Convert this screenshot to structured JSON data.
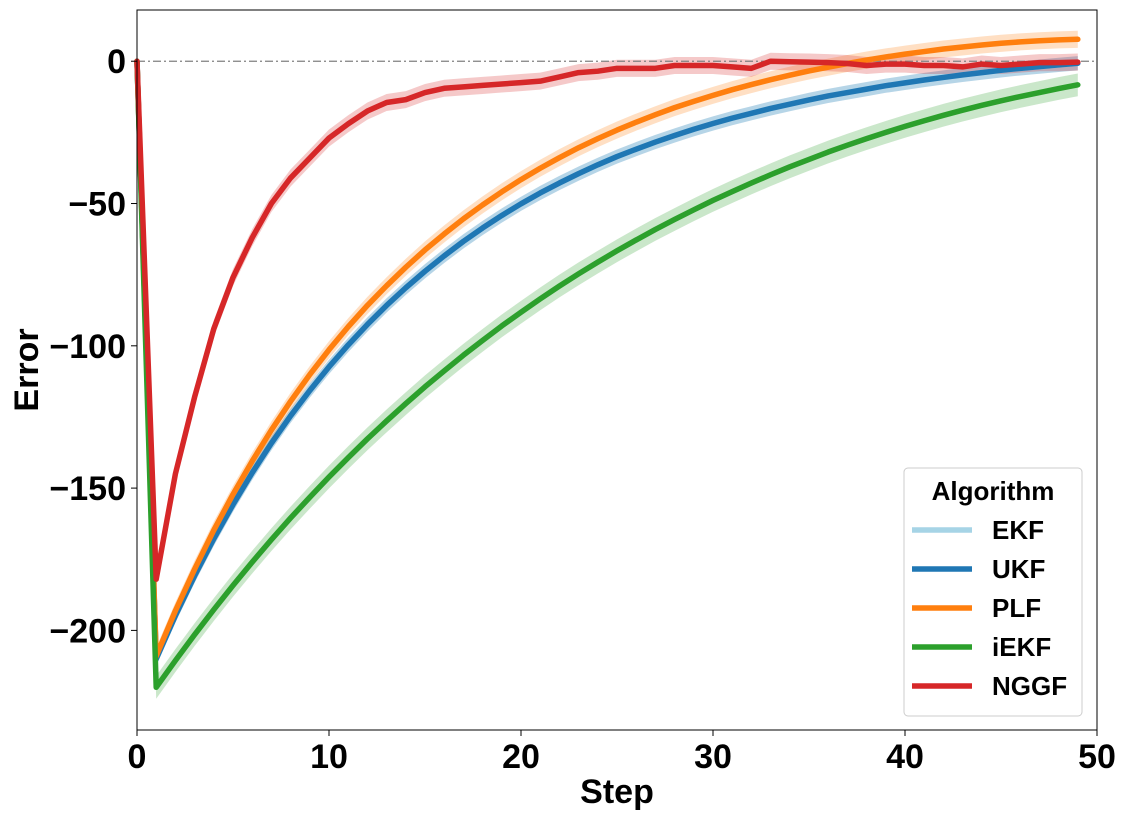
{
  "chart_data": {
    "type": "line",
    "xlabel": "Step",
    "ylabel": "Error",
    "xlim": [
      0,
      50
    ],
    "ylim": [
      -235,
      18
    ],
    "xticks": [
      0,
      10,
      20,
      30,
      40,
      50
    ],
    "yticks": [
      0,
      -50,
      -100,
      -150,
      -200
    ],
    "xtick_labels": [
      "0",
      "10",
      "20",
      "30",
      "40",
      "50"
    ],
    "ytick_labels": [
      "0",
      "−50",
      "−100",
      "−150",
      "−200"
    ],
    "grid": false,
    "reference_line": {
      "y": 0,
      "style": "dash-dot",
      "color": "#808080"
    },
    "legend": {
      "title": "Algorithm",
      "placement": "lower-right"
    },
    "x": [
      0,
      1,
      2,
      3,
      4,
      5,
      6,
      7,
      8,
      9,
      10,
      11,
      12,
      13,
      14,
      15,
      16,
      17,
      18,
      19,
      20,
      21,
      22,
      23,
      24,
      25,
      26,
      27,
      28,
      29,
      30,
      31,
      32,
      33,
      34,
      35,
      36,
      37,
      38,
      39,
      40,
      41,
      42,
      43,
      44,
      45,
      46,
      47,
      48,
      49
    ],
    "series": [
      {
        "name": "EKF",
        "color": "#a6d4e6",
        "band": 2.5,
        "values": [
          0,
          -210,
          -194.8,
          -180.8,
          -167.8,
          -155.8,
          -144.6,
          -134.2,
          -124.6,
          -115.7,
          -107.4,
          -99.7,
          -92.5,
          -85.8,
          -79.6,
          -73.8,
          -68.4,
          -63.3,
          -58.6,
          -54.2,
          -50.1,
          -46.3,
          -42.8,
          -39.5,
          -36.4,
          -33.5,
          -30.9,
          -28.4,
          -26.1,
          -23.9,
          -21.9,
          -20,
          -18.3,
          -16.6,
          -15.1,
          -13.6,
          -12.2,
          -11,
          -9.8,
          -8.6,
          -7.6,
          -6.6,
          -5.7,
          -4.8,
          -4,
          -3.2,
          -2.5,
          -1.9,
          -1.3,
          -0.7
        ]
      },
      {
        "name": "UKF",
        "color": "#1f77b4",
        "band": 2.5,
        "values": [
          0,
          -210,
          -194.8,
          -180.8,
          -167.8,
          -155.8,
          -144.6,
          -134.2,
          -124.6,
          -115.7,
          -107.4,
          -99.7,
          -92.5,
          -85.8,
          -79.6,
          -73.8,
          -68.4,
          -63.3,
          -58.6,
          -54.2,
          -50.1,
          -46.3,
          -42.8,
          -39.5,
          -36.4,
          -33.5,
          -30.9,
          -28.4,
          -26.1,
          -23.9,
          -21.9,
          -20,
          -18.3,
          -16.6,
          -15.1,
          -13.6,
          -12.2,
          -11,
          -9.8,
          -8.6,
          -7.6,
          -6.6,
          -5.7,
          -4.8,
          -4,
          -3.2,
          -2.5,
          -1.9,
          -1.3,
          -0.7
        ]
      },
      {
        "name": "PLF",
        "color": "#ff7f0e",
        "band": 3,
        "values": [
          0,
          -209,
          -193.1,
          -178.5,
          -164.8,
          -152.2,
          -140.5,
          -129.6,
          -119.5,
          -110.1,
          -101.4,
          -93.3,
          -85.8,
          -78.9,
          -72.4,
          -66.3,
          -60.7,
          -55.4,
          -50.5,
          -45.9,
          -41.6,
          -37.6,
          -33.9,
          -30.4,
          -27.2,
          -24.2,
          -21.4,
          -18.8,
          -16.3,
          -14.1,
          -12,
          -10,
          -8.2,
          -6.5,
          -4.9,
          -3.4,
          -2.1,
          -0.8,
          0.4,
          1.5,
          2.5,
          3.4,
          4.3,
          5,
          5.7,
          6.3,
          6.8,
          7.2,
          7.5,
          7.7
        ]
      },
      {
        "name": "iEKF",
        "color": "#2ca02c",
        "band": 4,
        "values": [
          0,
          -220,
          -210.6,
          -201.5,
          -192.7,
          -184.2,
          -176,
          -168.1,
          -160.5,
          -153.2,
          -146.1,
          -139.3,
          -132.7,
          -126.4,
          -120.3,
          -114.4,
          -108.8,
          -103.3,
          -98.1,
          -93,
          -88.2,
          -83.5,
          -79,
          -74.7,
          -70.6,
          -66.6,
          -62.8,
          -59.1,
          -55.6,
          -52.2,
          -48.9,
          -45.8,
          -42.8,
          -39.9,
          -37.1,
          -34.5,
          -31.9,
          -29.5,
          -27.2,
          -25,
          -22.9,
          -20.9,
          -19,
          -17.2,
          -15.5,
          -13.9,
          -12.4,
          -11,
          -9.6,
          -8.3
        ]
      },
      {
        "name": "NGGF",
        "color": "#d62728",
        "band": 3,
        "values": [
          0,
          -182,
          -145,
          -118,
          -94,
          -76,
          -62,
          -50,
          -41,
          -34,
          -27,
          -22,
          -17.5,
          -14.5,
          -13.5,
          -11,
          -9.5,
          -9,
          -8.5,
          -8,
          -7.5,
          -7,
          -5.5,
          -4,
          -3.5,
          -2.5,
          -2.5,
          -2.5,
          -1.5,
          -1.5,
          -1.5,
          -2,
          -2.5,
          0,
          -0.2,
          -0.3,
          -0.5,
          -0.8,
          -1.5,
          -1,
          -1,
          -1.5,
          -1.5,
          -2,
          -1,
          -1.5,
          -1,
          -0.5,
          -0.5,
          -0.3
        ]
      }
    ]
  }
}
